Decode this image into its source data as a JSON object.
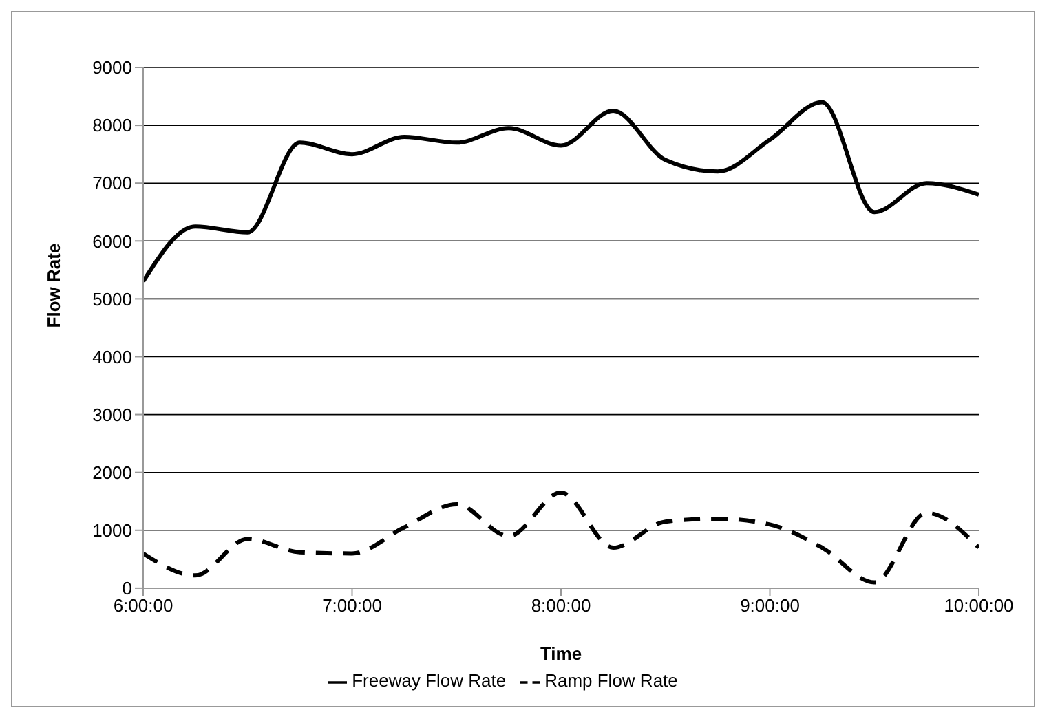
{
  "chart_data": {
    "type": "line",
    "xlabel": "Time",
    "ylabel": "Flow Rate",
    "x": [
      6,
      6.25,
      6.5,
      6.75,
      7,
      7.25,
      7.5,
      7.75,
      8,
      8.25,
      8.5,
      8.75,
      9,
      9.25,
      9.5,
      9.75,
      10
    ],
    "xlim": [
      6,
      10
    ],
    "xticks": [
      {
        "value": 6,
        "label": "6:00:00"
      },
      {
        "value": 7,
        "label": "7:00:00"
      },
      {
        "value": 8,
        "label": "8:00:00"
      },
      {
        "value": 9,
        "label": "9:00:00"
      },
      {
        "value": 10,
        "label": "10:00:00"
      }
    ],
    "ylim": [
      0,
      9000
    ],
    "yticks": [
      0,
      1000,
      2000,
      3000,
      4000,
      5000,
      6000,
      7000,
      8000,
      9000
    ],
    "grid": "y",
    "legend": "bottom",
    "marker": "none",
    "series": [
      {
        "name": "Ramp Flow Rate",
        "color": "#000000",
        "line_style": "dashed",
        "values": [
          600,
          220,
          850,
          620,
          600,
          1050,
          1450,
          900,
          1650,
          700,
          1150,
          1200,
          1100,
          700,
          100,
          1300,
          700
        ]
      },
      {
        "name": "Freeway Flow Rate",
        "color": "#000000",
        "line_style": "solid",
        "values": [
          5300,
          6250,
          6150,
          7700,
          7500,
          7800,
          7700,
          7950,
          7650,
          8250,
          7400,
          7200,
          7750,
          8400,
          6500,
          7000,
          6800
        ]
      }
    ]
  }
}
